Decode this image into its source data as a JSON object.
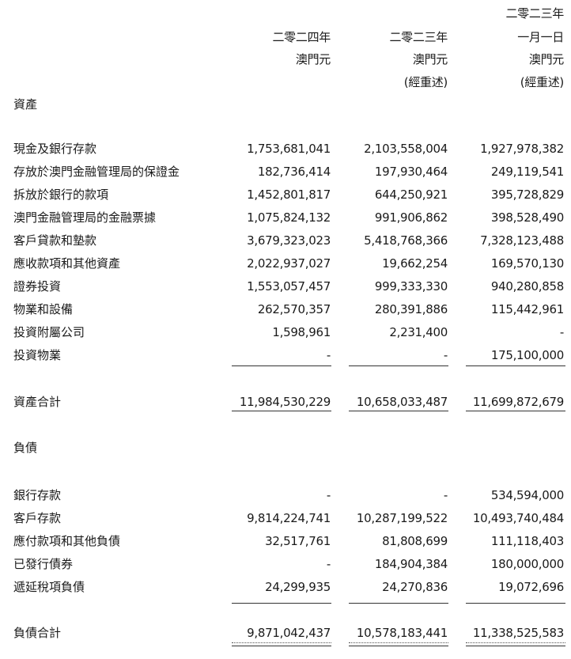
{
  "header": {
    "columns": [
      {
        "lines": [
          "",
          "二零二四年",
          "澳門元",
          ""
        ]
      },
      {
        "lines": [
          "",
          "二零二三年",
          "澳門元",
          "(經重述)"
        ]
      },
      {
        "lines": [
          "二零二三年",
          "一月一日",
          "澳門元",
          "(經重述)"
        ]
      }
    ]
  },
  "assets": {
    "heading": "資產",
    "items": [
      {
        "label": "現金及銀行存款",
        "values": [
          "1,753,681,041",
          "2,103,558,004",
          "1,927,978,382"
        ]
      },
      {
        "label": "存放於澳門金融管理局的保證金",
        "values": [
          "182,736,414",
          "197,930,464",
          "249,119,541"
        ]
      },
      {
        "label": "拆放於銀行的款項",
        "values": [
          "1,452,801,817",
          "644,250,921",
          "395,728,829"
        ]
      },
      {
        "label": "澳門金融管理局的金融票據",
        "values": [
          "1,075,824,132",
          "991,906,862",
          "398,528,490"
        ]
      },
      {
        "label": "客戶貸款和墊款",
        "values": [
          "3,679,323,023",
          "5,418,768,366",
          "7,328,123,488"
        ]
      },
      {
        "label": "應收款項和其他資產",
        "values": [
          "2,022,937,027",
          "19,662,254",
          "169,570,130"
        ]
      },
      {
        "label": "證券投資",
        "values": [
          "1,553,057,457",
          "999,333,330",
          "940,280,858"
        ]
      },
      {
        "label": "物業和設備",
        "values": [
          "262,570,357",
          "280,391,886",
          "115,442,961"
        ]
      },
      {
        "label": "投資附屬公司",
        "values": [
          "1,598,961",
          "2,231,400",
          "-"
        ]
      },
      {
        "label": "投資物業",
        "values": [
          "-",
          "-",
          "175,100,000"
        ]
      }
    ],
    "total": {
      "label": "資產合計",
      "values": [
        "11,984,530,229",
        "10,658,033,487",
        "11,699,872,679"
      ]
    }
  },
  "liabilities": {
    "heading": "負債",
    "items": [
      {
        "label": "銀行存款",
        "values": [
          "-",
          "-",
          "534,594,000"
        ]
      },
      {
        "label": "客戶存款",
        "values": [
          "9,814,224,741",
          "10,287,199,522",
          "10,493,740,484"
        ]
      },
      {
        "label": "應付款項和其他負債",
        "values": [
          "32,517,761",
          "81,808,699",
          "111,118,403"
        ]
      },
      {
        "label": "已發行債券",
        "values": [
          "-",
          "184,904,384",
          "180,000,000"
        ]
      },
      {
        "label": "遞延稅項負債",
        "values": [
          "24,299,935",
          "24,270,836",
          "19,072,696"
        ]
      }
    ],
    "total": {
      "label": "負債合計",
      "values": [
        "9,871,042,437",
        "10,578,183,441",
        "11,338,525,583"
      ]
    }
  }
}
